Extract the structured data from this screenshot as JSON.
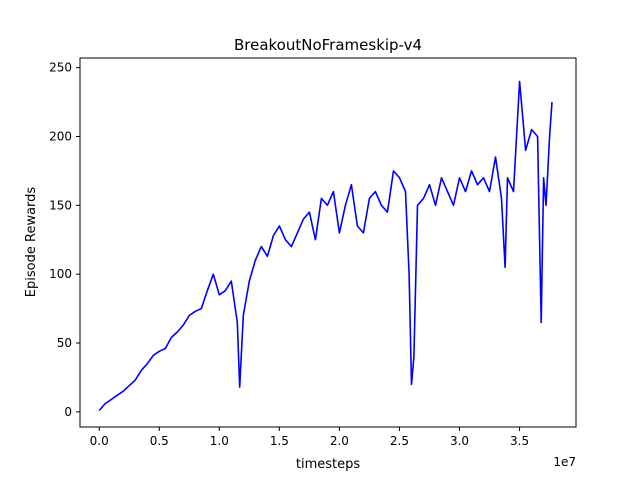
{
  "chart_data": {
    "type": "line",
    "title": "BreakoutNoFrameskip-v4",
    "xlabel": "timesteps",
    "ylabel": "Episode Rewards",
    "x_offset_label": "1e7",
    "xlim": [
      -0.16,
      3.97
    ],
    "ylim": [
      -11,
      257
    ],
    "x_ticks": [
      0.0,
      0.5,
      1.0,
      1.5,
      2.0,
      2.5,
      3.0,
      3.5
    ],
    "x_tick_labels": [
      "0.0",
      "0.5",
      "1.0",
      "1.5",
      "2.0",
      "2.5",
      "3.0",
      "3.5"
    ],
    "y_ticks": [
      0,
      50,
      100,
      150,
      200,
      250
    ],
    "y_tick_labels": [
      "0",
      "50",
      "100",
      "150",
      "200",
      "250"
    ],
    "grid": false,
    "series": [
      {
        "color": "#0000ff",
        "x": [
          0.0,
          0.05,
          0.1,
          0.15,
          0.2,
          0.25,
          0.3,
          0.35,
          0.4,
          0.45,
          0.5,
          0.55,
          0.6,
          0.65,
          0.7,
          0.75,
          0.8,
          0.85,
          0.9,
          0.95,
          1.0,
          1.05,
          1.1,
          1.15,
          1.17,
          1.2,
          1.25,
          1.3,
          1.35,
          1.4,
          1.45,
          1.5,
          1.55,
          1.6,
          1.65,
          1.7,
          1.75,
          1.8,
          1.85,
          1.9,
          1.95,
          2.0,
          2.05,
          2.1,
          2.15,
          2.2,
          2.25,
          2.3,
          2.35,
          2.4,
          2.45,
          2.5,
          2.55,
          2.58,
          2.6,
          2.62,
          2.65,
          2.7,
          2.75,
          2.8,
          2.85,
          2.9,
          2.95,
          3.0,
          3.05,
          3.1,
          3.15,
          3.2,
          3.25,
          3.3,
          3.35,
          3.38,
          3.4,
          3.45,
          3.5,
          3.55,
          3.6,
          3.65,
          3.68,
          3.7,
          3.72,
          3.75,
          3.77
        ],
        "y": [
          1,
          6,
          9,
          12,
          15,
          19,
          23,
          30,
          35,
          41,
          44,
          46,
          54,
          58,
          63,
          70,
          73,
          75,
          88,
          100,
          85,
          88,
          95,
          65,
          18,
          70,
          95,
          110,
          120,
          113,
          128,
          135,
          125,
          120,
          130,
          140,
          145,
          125,
          155,
          150,
          160,
          130,
          150,
          165,
          135,
          130,
          155,
          160,
          150,
          145,
          175,
          170,
          160,
          100,
          20,
          40,
          150,
          155,
          165,
          150,
          170,
          160,
          150,
          170,
          160,
          175,
          165,
          170,
          160,
          185,
          155,
          105,
          170,
          160,
          240,
          190,
          205,
          200,
          65,
          170,
          150,
          200,
          225
        ]
      }
    ]
  }
}
